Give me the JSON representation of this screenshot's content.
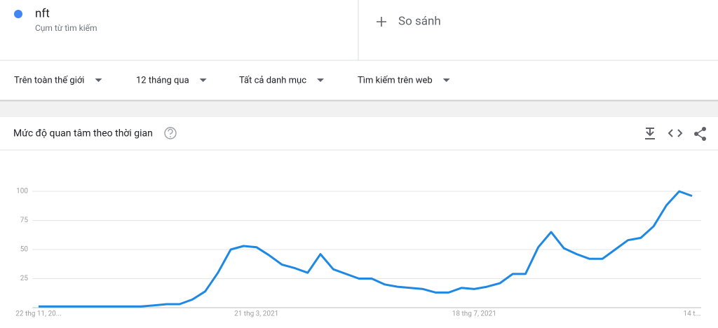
{
  "header": {
    "term": "nft",
    "term_type": "Cụm từ tìm kiếm",
    "compare": "So sánh"
  },
  "filters": [
    "Trên toàn thế giới",
    "12 tháng qua",
    "Tất cả danh mục",
    "Tìm kiếm trên web"
  ],
  "card": {
    "title": "Mức độ quan tâm theo thời gian"
  },
  "chart_data": {
    "type": "line",
    "color": "#1e88e5",
    "categories": [
      "22 thg 11, 20...",
      null,
      null,
      null,
      null,
      null,
      null,
      null,
      null,
      null,
      null,
      null,
      null,
      null,
      null,
      null,
      null,
      "21 thg 3, 2021",
      null,
      null,
      null,
      null,
      null,
      null,
      null,
      null,
      null,
      null,
      null,
      null,
      null,
      null,
      null,
      null,
      "18 thg 7, 2021",
      null,
      null,
      null,
      null,
      null,
      null,
      null,
      null,
      null,
      null,
      null,
      null,
      null,
      null,
      null,
      null,
      "14 t..."
    ],
    "values": [
      1,
      1,
      1,
      1,
      1,
      1,
      1,
      1,
      1,
      2,
      3,
      3,
      7,
      14,
      30,
      50,
      53,
      52,
      45,
      37,
      34,
      30,
      46,
      33,
      29,
      25,
      25,
      20,
      18,
      17,
      16,
      13,
      13,
      17,
      16,
      18,
      21,
      29,
      29,
      52,
      65,
      51,
      46,
      42,
      42,
      50,
      58,
      60,
      70,
      88,
      100,
      96
    ],
    "ylim": [
      0,
      100
    ],
    "yticks": [
      25,
      50,
      75,
      100
    ],
    "grid": true
  }
}
